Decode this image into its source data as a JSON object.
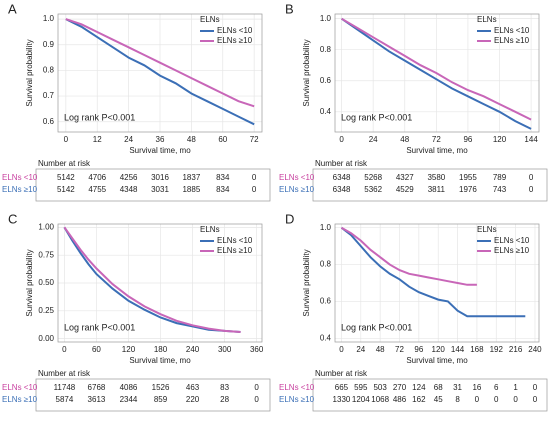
{
  "chart_data": [
    {
      "type": "line",
      "label": "A",
      "legend_title": "ELNs",
      "annotation": "Log rank P<0.001",
      "x_label": "Survival time, mo",
      "y_label": "Survival probability",
      "xlim": [
        -3,
        75
      ],
      "xticks": [
        0,
        12,
        24,
        36,
        48,
        60,
        72
      ],
      "ylim": [
        0.56,
        1.02
      ],
      "yticks": [
        {
          "value": 0.6,
          "label": "0.6"
        },
        {
          "value": 0.7,
          "label": "0.7"
        },
        {
          "value": 0.8,
          "label": "0.8"
        },
        {
          "value": 0.9,
          "label": "0.9"
        },
        {
          "value": 1.0,
          "label": "1.0"
        }
      ],
      "grid": true,
      "x": [
        0,
        6,
        12,
        18,
        24,
        30,
        36,
        42,
        48,
        54,
        60,
        66,
        72
      ],
      "series": [
        {
          "name": "ELNs <10",
          "color": "#3b6fb6",
          "values": [
            1,
            0.97,
            0.93,
            0.89,
            0.85,
            0.82,
            0.78,
            0.75,
            0.71,
            0.68,
            0.65,
            0.62,
            0.59
          ]
        },
        {
          "name": "ELNs ≥10",
          "color": "#c866b8",
          "values": [
            1,
            0.98,
            0.95,
            0.92,
            0.89,
            0.86,
            0.83,
            0.8,
            0.77,
            0.74,
            0.71,
            0.68,
            0.66
          ]
        }
      ],
      "risk_table": {
        "title": "Number at risk",
        "rows": [
          {
            "name": "ELNs <10",
            "color": "#c8409f",
            "values": [
              5142,
              4706,
              4256,
              3016,
              1837,
              834,
              0
            ]
          },
          {
            "name": "ELNs ≥10",
            "color": "#3b6fb6",
            "values": [
              5142,
              4755,
              4348,
              3031,
              1885,
              834,
              0
            ]
          }
        ]
      }
    },
    {
      "type": "line",
      "label": "B",
      "legend_title": "ELNs",
      "annotation": "Log rank P<0.001",
      "x_label": "Survival time, mo",
      "y_label": "Survival probability",
      "xlim": [
        -5,
        150
      ],
      "xticks": [
        0,
        24,
        48,
        72,
        96,
        120,
        144
      ],
      "ylim": [
        0.27,
        1.03
      ],
      "yticks": [
        {
          "value": 0.4,
          "label": "0.4"
        },
        {
          "value": 0.6,
          "label": "0.6"
        },
        {
          "value": 0.8,
          "label": "0.8"
        },
        {
          "value": 1.0,
          "label": "1.0"
        }
      ],
      "grid": true,
      "x": [
        0,
        12,
        24,
        36,
        48,
        60,
        72,
        84,
        96,
        108,
        120,
        132,
        144
      ],
      "series": [
        {
          "name": "ELNs <10",
          "color": "#3b6fb6",
          "values": [
            1,
            0.93,
            0.86,
            0.79,
            0.73,
            0.67,
            0.61,
            0.55,
            0.5,
            0.45,
            0.4,
            0.34,
            0.29
          ]
        },
        {
          "name": "ELNs ≥10",
          "color": "#c866b8",
          "values": [
            1,
            0.94,
            0.88,
            0.82,
            0.76,
            0.7,
            0.65,
            0.59,
            0.54,
            0.5,
            0.45,
            0.4,
            0.35
          ]
        }
      ],
      "risk_table": {
        "title": "Number at risk",
        "rows": [
          {
            "name": "ELNs <10",
            "color": "#c8409f",
            "values": [
              6348,
              5268,
              4327,
              3580,
              1955,
              789,
              0
            ]
          },
          {
            "name": "ELNs ≥10",
            "color": "#3b6fb6",
            "values": [
              6348,
              5362,
              4529,
              3811,
              1976,
              743,
              0
            ]
          }
        ]
      }
    },
    {
      "type": "line",
      "label": "C",
      "legend_title": "ELNs",
      "annotation": "Log rank P<0.001",
      "x_label": "Survival time, mo",
      "y_label": "Survival probability",
      "xlim": [
        -12,
        370
      ],
      "xticks": [
        0,
        60,
        120,
        180,
        240,
        300,
        360
      ],
      "ylim": [
        -0.03,
        1.03
      ],
      "yticks": [
        {
          "value": 0,
          "label": "0.00"
        },
        {
          "value": 0.25,
          "label": "0.25"
        },
        {
          "value": 0.5,
          "label": "0.50"
        },
        {
          "value": 0.75,
          "label": "0.75"
        },
        {
          "value": 1.0,
          "label": "1.00"
        }
      ],
      "grid": true,
      "x": [
        0,
        15,
        30,
        45,
        60,
        90,
        120,
        150,
        180,
        210,
        240,
        270,
        300,
        330
      ],
      "series": [
        {
          "name": "ELNs <10",
          "color": "#3b6fb6",
          "values": [
            1,
            0.88,
            0.77,
            0.67,
            0.58,
            0.45,
            0.34,
            0.26,
            0.19,
            0.14,
            0.11,
            0.08,
            0.07,
            0.06
          ]
        },
        {
          "name": "ELNs ≥10",
          "color": "#c866b8",
          "values": [
            1,
            0.9,
            0.8,
            0.71,
            0.63,
            0.49,
            0.38,
            0.29,
            0.22,
            0.16,
            0.12,
            0.09,
            0.07,
            0.06
          ]
        }
      ],
      "risk_table": {
        "title": "Number at risk",
        "rows": [
          {
            "name": "ELNs <10",
            "color": "#c8409f",
            "values": [
              11748,
              6768,
              4086,
              1526,
              463,
              83,
              0
            ]
          },
          {
            "name": "ELNs ≥10",
            "color": "#3b6fb6",
            "values": [
              5874,
              3613,
              2344,
              859,
              220,
              28,
              0
            ]
          }
        ]
      }
    },
    {
      "type": "line",
      "label": "D",
      "legend_title": "ELNs",
      "annotation": "Log rank P<0.001",
      "x_label": "Survival time, mo",
      "y_label": "Survival probability",
      "xlim": [
        -8,
        245
      ],
      "xticks": [
        0,
        24,
        48,
        72,
        96,
        120,
        144,
        168,
        192,
        216,
        240
      ],
      "ylim": [
        0.38,
        1.02
      ],
      "yticks": [
        {
          "value": 0.4,
          "label": "0.4"
        },
        {
          "value": 0.6,
          "label": "0.6"
        },
        {
          "value": 0.8,
          "label": "0.8"
        },
        {
          "value": 1.0,
          "label": "1.0"
        }
      ],
      "grid": true,
      "x": [
        0,
        12,
        24,
        36,
        48,
        60,
        72,
        84,
        96,
        108,
        120,
        132,
        144,
        156,
        168,
        180,
        204,
        228
      ],
      "series": [
        {
          "name": "ELNs <10",
          "color": "#3b6fb6",
          "values": [
            1,
            0.96,
            0.9,
            0.84,
            0.79,
            0.75,
            0.72,
            0.68,
            0.65,
            0.63,
            0.61,
            0.6,
            0.55,
            0.52,
            0.52,
            0.52,
            0.52,
            0.52
          ]
        },
        {
          "name": "ELNs ≥10",
          "color": "#c866b8",
          "values": [
            1,
            0.97,
            0.93,
            0.88,
            0.84,
            0.8,
            0.77,
            0.75,
            0.74,
            0.73,
            0.72,
            0.71,
            0.7,
            0.69,
            0.69,
            null,
            null,
            null
          ]
        }
      ],
      "risk_table": {
        "title": "Number at risk",
        "rows": [
          {
            "name": "ELNs <10",
            "color": "#c8409f",
            "values": [
              665,
              595,
              503,
              270,
              124,
              68,
              31,
              16,
              6,
              1,
              0
            ]
          },
          {
            "name": "ELNs ≥10",
            "color": "#3b6fb6",
            "values": [
              1330,
              1204,
              1068,
              486,
              162,
              45,
              8,
              0,
              0,
              0,
              0
            ]
          }
        ]
      }
    }
  ]
}
